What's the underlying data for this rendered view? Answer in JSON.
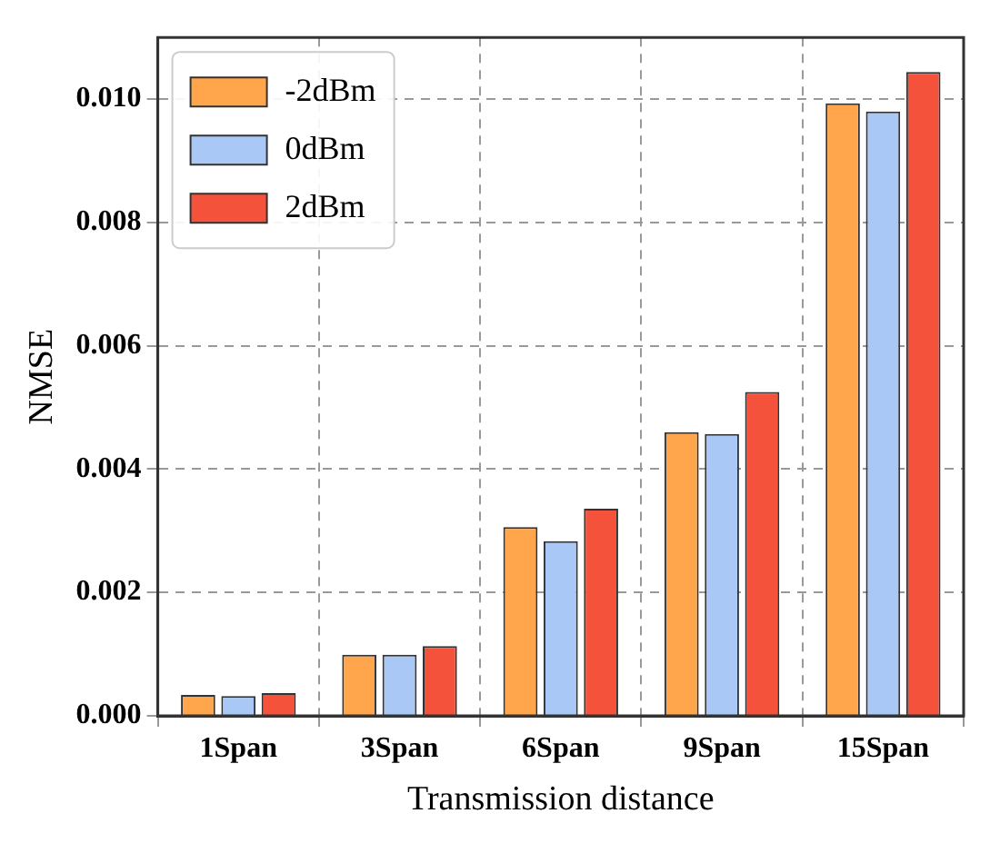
{
  "chart_data": {
    "type": "bar",
    "xlabel": "Transmission distance",
    "ylabel": "NMSE",
    "categories": [
      "1Span",
      "3Span",
      "6Span",
      "9Span",
      "15Span"
    ],
    "series": [
      {
        "name": "-2dBm",
        "color": "#ffa64d",
        "values": [
          0.00034,
          0.00099,
          0.00306,
          0.0046,
          0.00993
        ]
      },
      {
        "name": "0dBm",
        "color": "#a9c8f5",
        "values": [
          0.00032,
          0.00099,
          0.00283,
          0.00457,
          0.0098
        ]
      },
      {
        "name": "2dBm",
        "color": "#f5523c",
        "values": [
          0.00037,
          0.00113,
          0.00336,
          0.00525,
          0.01044
        ]
      }
    ],
    "ylim": [
      0,
      0.011
    ],
    "yticks": [
      {
        "value": 0,
        "label": "0.000"
      },
      {
        "value": 0.002,
        "label": "0.002"
      },
      {
        "value": 0.004,
        "label": "0.004"
      },
      {
        "value": 0.006,
        "label": "0.006"
      },
      {
        "value": 0.008,
        "label": "0.008"
      },
      {
        "value": 0.01,
        "label": "0.010"
      }
    ],
    "grid": true,
    "legend": "top left"
  }
}
